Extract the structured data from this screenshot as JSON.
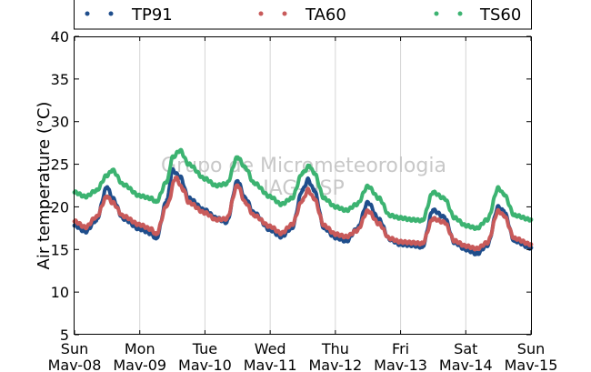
{
  "chart_data": {
    "type": "scatter",
    "title": "",
    "xlabel": "",
    "ylabel": "Air temperature (°C)",
    "ylim": [
      5,
      40
    ],
    "yticks": [
      "5",
      "10",
      "15",
      "20",
      "25",
      "30",
      "35",
      "40"
    ],
    "xlim": [
      0,
      7
    ],
    "xticks": [
      {
        "day": "Sun",
        "date": "Mav-08"
      },
      {
        "day": "Mon",
        "date": "Mav-09"
      },
      {
        "day": "Tue",
        "date": "Mav-10"
      },
      {
        "day": "Wed",
        "date": "Mav-11"
      },
      {
        "day": "Thu",
        "date": "Mav-12"
      },
      {
        "day": "Fri",
        "date": "Mav-13"
      },
      {
        "day": "Sat",
        "date": "Mav-14"
      },
      {
        "day": "Sun",
        "date": "Mav-15"
      }
    ],
    "grid": "vertical",
    "legend_position": "top",
    "watermark": [
      "Grupo de Micrometeorologia",
      "IAG-USP"
    ],
    "series": [
      {
        "name": "TP91",
        "color": "#1f4e8c",
        "points": [
          [
            0,
            17.8
          ],
          [
            0.17,
            17.1
          ],
          [
            0.33,
            18.4
          ],
          [
            0.5,
            22.3
          ],
          [
            0.58,
            21.0
          ],
          [
            0.75,
            18.6
          ],
          [
            1.0,
            17.4
          ],
          [
            1.17,
            16.9
          ],
          [
            1.25,
            16.3
          ],
          [
            1.42,
            20.8
          ],
          [
            1.5,
            24.3
          ],
          [
            1.62,
            23.5
          ],
          [
            1.75,
            21.0
          ],
          [
            2.0,
            19.6
          ],
          [
            2.17,
            18.7
          ],
          [
            2.33,
            18.2
          ],
          [
            2.5,
            23.0
          ],
          [
            2.62,
            21.0
          ],
          [
            2.75,
            19.3
          ],
          [
            3.0,
            17.3
          ],
          [
            3.17,
            16.5
          ],
          [
            3.33,
            17.5
          ],
          [
            3.5,
            22.0
          ],
          [
            3.58,
            23.2
          ],
          [
            3.67,
            22.0
          ],
          [
            3.83,
            17.5
          ],
          [
            4.0,
            16.4
          ],
          [
            4.17,
            16.0
          ],
          [
            4.33,
            17.4
          ],
          [
            4.5,
            20.5
          ],
          [
            4.67,
            18.5
          ],
          [
            4.83,
            16.2
          ],
          [
            5.0,
            15.6
          ],
          [
            5.17,
            15.5
          ],
          [
            5.33,
            15.3
          ],
          [
            5.5,
            19.6
          ],
          [
            5.67,
            18.8
          ],
          [
            5.83,
            15.8
          ],
          [
            6.0,
            15.0
          ],
          [
            6.17,
            14.5
          ],
          [
            6.33,
            15.5
          ],
          [
            6.5,
            20.0
          ],
          [
            6.58,
            19.5
          ],
          [
            6.75,
            16.0
          ],
          [
            7.0,
            15.2
          ]
        ]
      },
      {
        "name": "TA60",
        "color": "#c85a5a",
        "points": [
          [
            0,
            18.3
          ],
          [
            0.17,
            17.6
          ],
          [
            0.33,
            18.8
          ],
          [
            0.5,
            21.2
          ],
          [
            0.58,
            20.5
          ],
          [
            0.75,
            18.9
          ],
          [
            1.0,
            17.9
          ],
          [
            1.17,
            17.4
          ],
          [
            1.25,
            16.8
          ],
          [
            1.42,
            20.2
          ],
          [
            1.55,
            23.4
          ],
          [
            1.67,
            22.0
          ],
          [
            1.75,
            20.5
          ],
          [
            2.0,
            19.3
          ],
          [
            2.17,
            18.5
          ],
          [
            2.33,
            18.6
          ],
          [
            2.5,
            22.5
          ],
          [
            2.62,
            20.5
          ],
          [
            2.75,
            19.0
          ],
          [
            3.0,
            17.7
          ],
          [
            3.17,
            16.9
          ],
          [
            3.33,
            17.9
          ],
          [
            3.5,
            20.8
          ],
          [
            3.58,
            22.0
          ],
          [
            3.67,
            21.0
          ],
          [
            3.83,
            17.8
          ],
          [
            4.0,
            16.8
          ],
          [
            4.17,
            16.5
          ],
          [
            4.33,
            17.2
          ],
          [
            4.5,
            19.5
          ],
          [
            4.67,
            18.0
          ],
          [
            4.83,
            16.3
          ],
          [
            5.0,
            15.9
          ],
          [
            5.17,
            15.8
          ],
          [
            5.33,
            15.7
          ],
          [
            5.5,
            18.6
          ],
          [
            5.67,
            18.2
          ],
          [
            5.83,
            16.0
          ],
          [
            6.0,
            15.4
          ],
          [
            6.17,
            15.1
          ],
          [
            6.33,
            15.8
          ],
          [
            6.5,
            19.5
          ],
          [
            6.58,
            19.0
          ],
          [
            6.75,
            16.3
          ],
          [
            7.0,
            15.6
          ]
        ]
      },
      {
        "name": "TS60",
        "color": "#3cb371",
        "points": [
          [
            0,
            21.7
          ],
          [
            0.17,
            21.2
          ],
          [
            0.33,
            21.9
          ],
          [
            0.5,
            23.7
          ],
          [
            0.58,
            24.3
          ],
          [
            0.75,
            22.6
          ],
          [
            1.0,
            21.3
          ],
          [
            1.17,
            21.0
          ],
          [
            1.25,
            20.6
          ],
          [
            1.42,
            23.0
          ],
          [
            1.5,
            25.8
          ],
          [
            1.62,
            26.6
          ],
          [
            1.75,
            25.0
          ],
          [
            2.0,
            23.3
          ],
          [
            2.17,
            22.5
          ],
          [
            2.33,
            22.7
          ],
          [
            2.5,
            25.8
          ],
          [
            2.62,
            24.6
          ],
          [
            2.75,
            22.8
          ],
          [
            3.0,
            21.2
          ],
          [
            3.17,
            20.3
          ],
          [
            3.33,
            21.0
          ],
          [
            3.5,
            24.0
          ],
          [
            3.6,
            24.8
          ],
          [
            3.67,
            24.0
          ],
          [
            3.83,
            21.0
          ],
          [
            4.0,
            20.0
          ],
          [
            4.17,
            19.6
          ],
          [
            4.33,
            20.3
          ],
          [
            4.5,
            22.4
          ],
          [
            4.67,
            21.0
          ],
          [
            4.83,
            19.0
          ],
          [
            5.0,
            18.7
          ],
          [
            5.17,
            18.5
          ],
          [
            5.33,
            18.4
          ],
          [
            5.5,
            21.7
          ],
          [
            5.67,
            21.0
          ],
          [
            5.83,
            18.7
          ],
          [
            6.0,
            17.8
          ],
          [
            6.17,
            17.5
          ],
          [
            6.33,
            18.5
          ],
          [
            6.5,
            22.2
          ],
          [
            6.58,
            21.5
          ],
          [
            6.75,
            19.0
          ],
          [
            7.0,
            18.5
          ]
        ]
      }
    ]
  }
}
